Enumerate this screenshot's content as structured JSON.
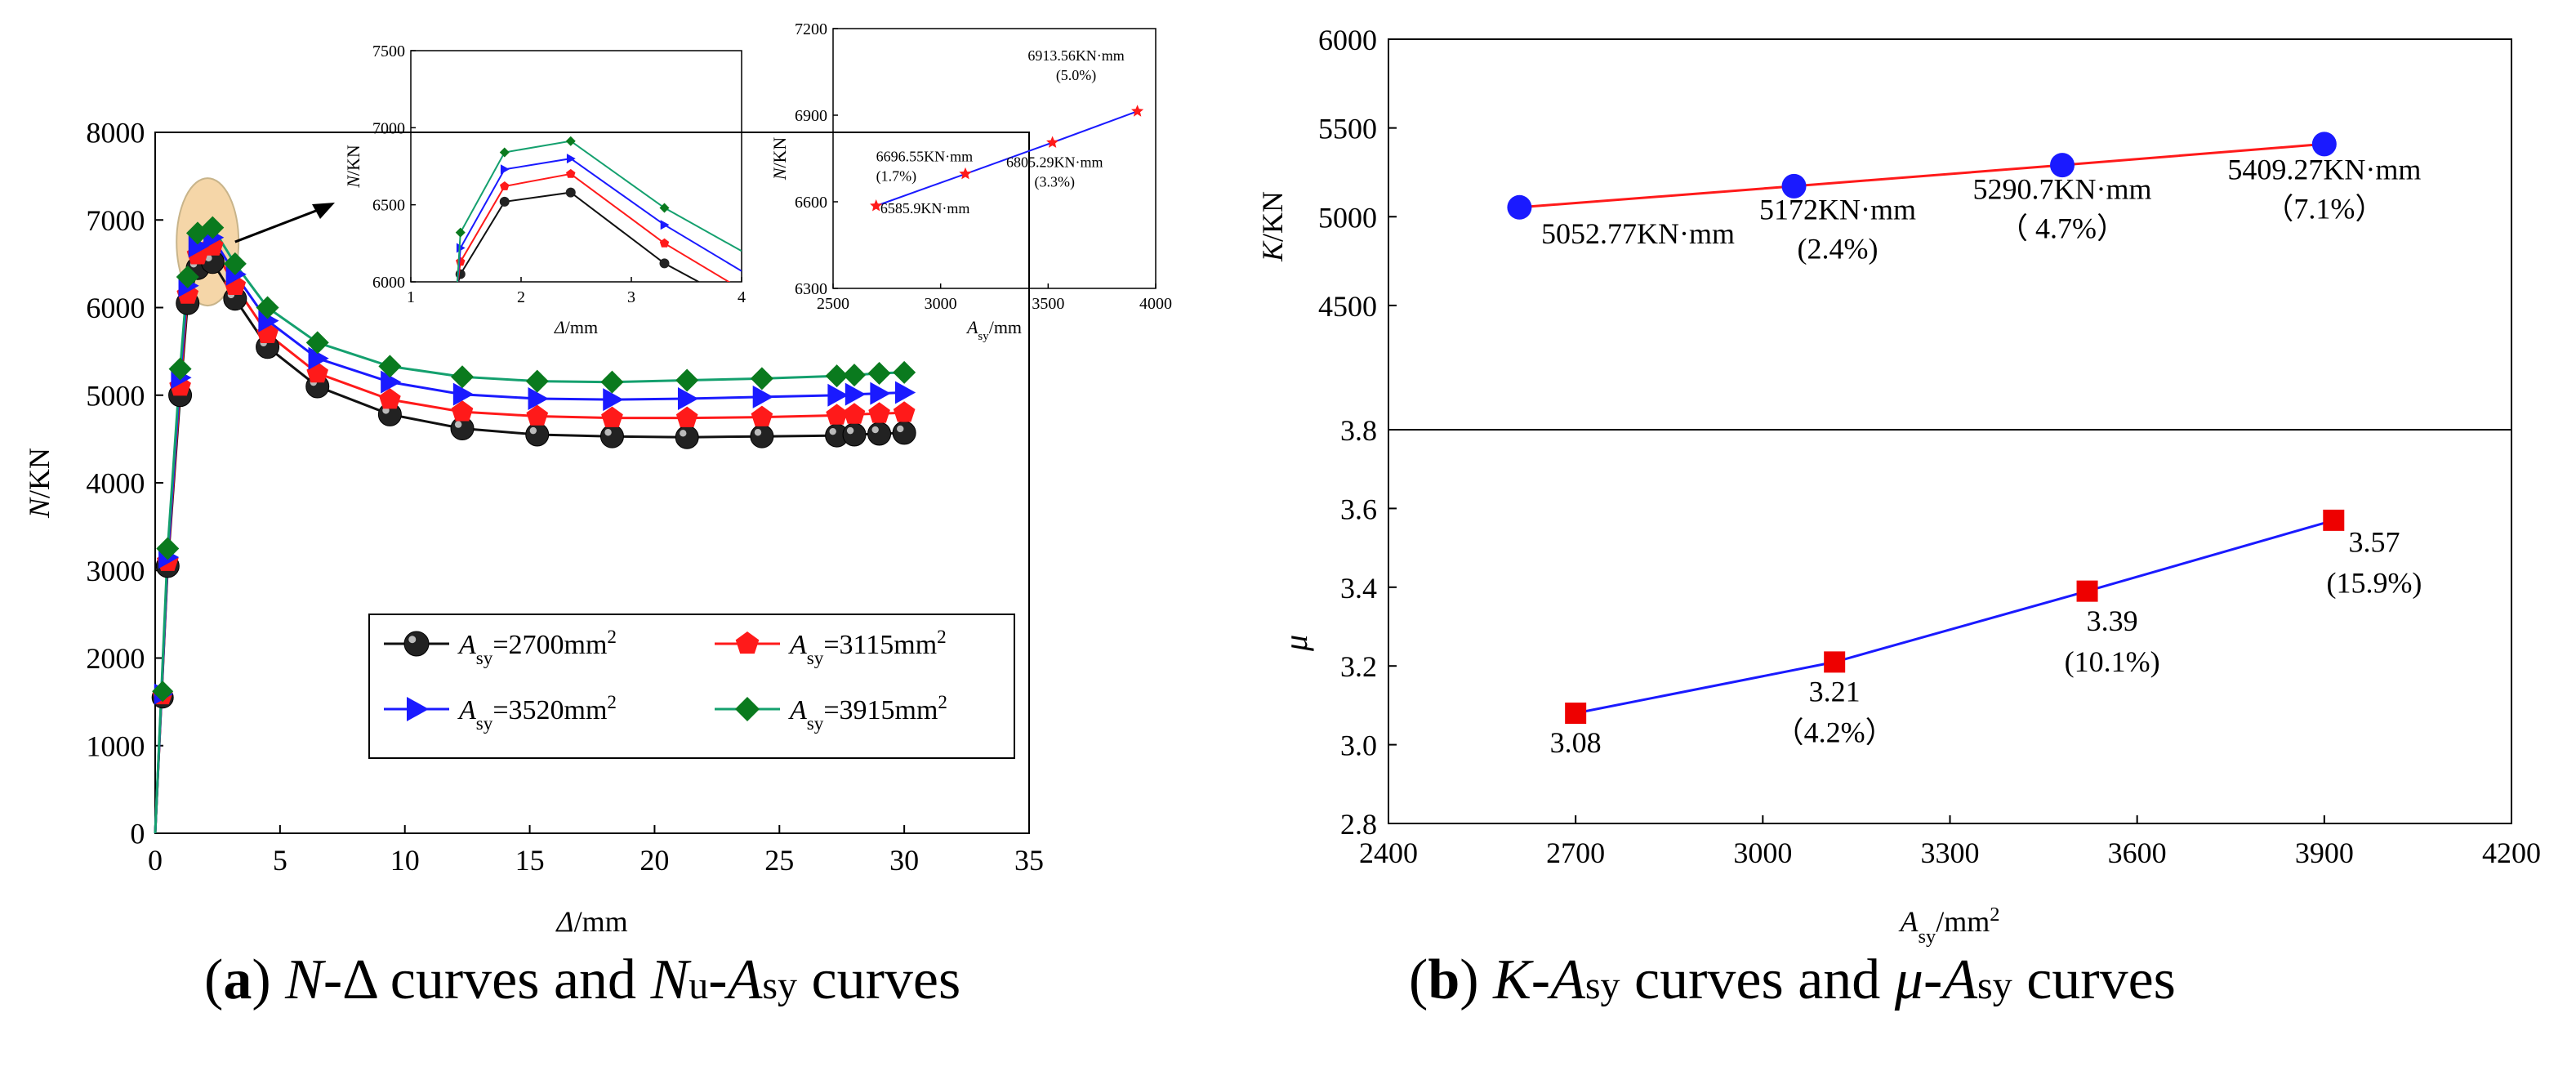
{
  "captions": {
    "a": {
      "letter": "a",
      "text_1": "N",
      "text_2": "-Δ curves and ",
      "text_3": "N",
      "sub_u": "u",
      "text_4": "-",
      "text_5": "A",
      "sub_sy": "sy",
      "text_6": " curves"
    },
    "b": {
      "letter": "b",
      "text_1": "K",
      "text_2": "-",
      "text_3": "A",
      "sub_sy": "sy",
      "text_4": " curves and ",
      "text_5": "μ",
      "text_6": "-",
      "text_7": "A",
      "text_8": " curves"
    }
  },
  "colors": {
    "black": "#111111",
    "red": "#ff1a1a",
    "blue": "#1a1aff",
    "green": "#14a06e",
    "marker_green": "#0a7a1e",
    "blue_point": "#1a1aff",
    "red_square": "#ee0000"
  },
  "legend": {
    "prefix": "A",
    "sub": "sy",
    "items": [
      {
        "eq": "=2700mm",
        "sup": "2",
        "color": "#111111",
        "marker": "ball"
      },
      {
        "eq": "=3115mm",
        "sup": "2",
        "color": "#ff1a1a",
        "marker": "pentagon"
      },
      {
        "eq": "=3520mm",
        "sup": "2",
        "color": "#1a1aff",
        "marker": "triangle"
      },
      {
        "eq": "=3915mm",
        "sup": "2",
        "color": "#14a06e",
        "marker": "diamond"
      }
    ]
  },
  "chart_data": [
    {
      "id": "main-n-delta",
      "type": "line",
      "xlabel_sym": "Δ",
      "xlabel_unit": "/mm",
      "ylabel_sym": "N",
      "ylabel_unit": "/KN",
      "xlim": [
        0,
        35
      ],
      "ylim": [
        0,
        8000
      ],
      "xticks": [
        0,
        5,
        10,
        15,
        20,
        25,
        30,
        35
      ],
      "yticks": [
        0,
        1000,
        2000,
        3000,
        4000,
        5000,
        6000,
        7000,
        8000
      ],
      "series": [
        {
          "name_prefix": "A",
          "name_sub": "sy",
          "name_rest": "=2700mm2",
          "x": [
            0,
            0.5,
            1.0,
            1.3,
            1.7,
            2.3,
            3.2,
            4.5,
            6.5,
            9.4,
            12.3,
            15.3,
            18.3,
            21.3,
            24.3,
            27.3,
            28.0,
            29.0,
            30.0
          ],
          "y": [
            0,
            3050,
            5000,
            6050,
            6450,
            6520,
            6100,
            5550,
            5100,
            4780,
            4620,
            4550,
            4530,
            4520,
            4530,
            4540,
            4550,
            4560,
            4570
          ]
        },
        {
          "name_prefix": "A",
          "name_sub": "sy",
          "name_rest": "=3115mm2",
          "x": [
            0,
            0.5,
            1.0,
            1.3,
            1.7,
            2.3,
            3.2,
            4.5,
            6.5,
            9.4,
            12.3,
            15.3,
            18.3,
            21.3,
            24.3,
            27.3,
            28.0,
            29.0,
            30.0
          ],
          "y": [
            0,
            3100,
            5100,
            6150,
            6600,
            6700,
            6250,
            5700,
            5250,
            4950,
            4810,
            4760,
            4740,
            4740,
            4750,
            4770,
            4780,
            4790,
            4800
          ]
        },
        {
          "name_prefix": "A",
          "name_sub": "sy",
          "name_rest": "=3520mm2",
          "x": [
            0,
            0.5,
            1.0,
            1.3,
            1.7,
            2.3,
            3.2,
            4.5,
            6.5,
            9.4,
            12.3,
            15.3,
            18.3,
            21.3,
            24.3,
            27.3,
            28.0,
            29.0,
            30.0
          ],
          "y": [
            0,
            3150,
            5200,
            6250,
            6700,
            6800,
            6380,
            5850,
            5420,
            5150,
            5010,
            4960,
            4950,
            4960,
            4980,
            5000,
            5010,
            5020,
            5030
          ]
        },
        {
          "name_prefix": "A",
          "name_sub": "sy",
          "name_rest": "=3915mm2",
          "x": [
            0,
            0.5,
            1.0,
            1.3,
            1.7,
            2.3,
            3.2,
            4.5,
            6.5,
            9.4,
            12.3,
            15.3,
            18.3,
            21.3,
            24.3,
            27.3,
            28.0,
            29.0,
            30.0
          ],
          "y": [
            0,
            3250,
            5300,
            6350,
            6850,
            6913,
            6500,
            6000,
            5600,
            5330,
            5210,
            5160,
            5150,
            5170,
            5190,
            5220,
            5230,
            5250,
            5260
          ]
        }
      ],
      "extra_points": [
        {
          "series": 0,
          "x": 0.3,
          "y": 1550
        },
        {
          "series": 1,
          "x": 0.3,
          "y": 1570
        },
        {
          "series": 2,
          "x": 0.3,
          "y": 1590
        },
        {
          "series": 3,
          "x": 0.3,
          "y": 1620
        }
      ],
      "legend_position": "lower-right"
    },
    {
      "id": "inset-zoom",
      "type": "line",
      "xlabel_sym": "Δ",
      "xlabel_unit": "/mm",
      "ylabel_sym": "N",
      "ylabel_unit": "/KN",
      "xlim": [
        1,
        4
      ],
      "ylim": [
        6000,
        7500
      ],
      "xticks": [
        1,
        2,
        3,
        4
      ],
      "yticks": [
        6000,
        6500,
        7000,
        7500
      ],
      "series": [
        {
          "x": [
            1.45,
            1.85,
            2.45,
            3.3,
            4.0
          ],
          "y": [
            6050,
            6520,
            6580,
            6120,
            5850
          ]
        },
        {
          "x": [
            1.45,
            1.85,
            2.45,
            3.3,
            4.0
          ],
          "y": [
            6130,
            6620,
            6700,
            6250,
            5950
          ]
        },
        {
          "x": [
            1.45,
            1.85,
            2.45,
            3.3,
            4.0
          ],
          "y": [
            6220,
            6730,
            6800,
            6370,
            6070
          ]
        },
        {
          "x": [
            1.45,
            1.85,
            2.45,
            3.3,
            4.0
          ],
          "y": [
            6320,
            6840,
            6913,
            6480,
            6200
          ]
        }
      ]
    },
    {
      "id": "inset-nu-asy",
      "type": "line",
      "xlabel_sym": "A",
      "xlabel_sub": "sy",
      "xlabel_unit": "/mm",
      "ylabel_sym": "N",
      "ylabel_unit": "/KN",
      "xlim": [
        2500,
        4000
      ],
      "ylim": [
        6300,
        7200
      ],
      "xticks": [
        2500,
        3000,
        3500,
        4000
      ],
      "yticks": [
        6300,
        6600,
        6900,
        7200
      ],
      "series": [
        {
          "x": [
            2700,
            3115,
            3520,
            3915
          ],
          "y": [
            6585.9,
            6696.55,
            6805.29,
            6913.56
          ]
        }
      ],
      "annotations": [
        {
          "lines": [
            "6585.9KN·mm"
          ],
          "x": 2720,
          "y": 6560,
          "anchor": "start"
        },
        {
          "lines": [
            "6696.55KN·mm",
            "(1.7%)"
          ],
          "x": 2700,
          "y": 6740,
          "anchor": "start"
        },
        {
          "lines": [
            "6805.29KN·mm",
            "(3.3%)"
          ],
          "x": 3530,
          "y": 6720,
          "anchor": "middle"
        },
        {
          "lines": [
            "6913.56KN·mm",
            "(5.0%)"
          ],
          "x": 3630,
          "y": 7090,
          "anchor": "middle"
        }
      ]
    },
    {
      "id": "k-asy",
      "type": "line",
      "ylabel_sym": "K",
      "ylabel_unit": "/KN",
      "xlim": [
        2400,
        4200
      ],
      "ylim": [
        3800,
        6000
      ],
      "yticks": [
        3800,
        4500,
        5000,
        5500,
        6000
      ],
      "series": [
        {
          "x": [
            2610,
            3050,
            3480,
            3900
          ],
          "y": [
            5052.77,
            5172,
            5290.7,
            5409.27
          ]
        }
      ],
      "annotations": [
        {
          "lines": [
            "5052.77KN·mm"
          ],
          "x": 2800,
          "y": 4850,
          "anchor": "middle"
        },
        {
          "lines": [
            "5172KN·mm",
            "(2.4%)"
          ],
          "x": 3120,
          "y": 4985,
          "anchor": "middle"
        },
        {
          "lines": [
            "5290.7KN·mm",
            "（  4.7%）"
          ],
          "x": 3480,
          "y": 5100,
          "anchor": "middle"
        },
        {
          "lines": [
            "5409.27KN·mm",
            "（7.1%）"
          ],
          "x": 3900,
          "y": 5210,
          "anchor": "middle"
        }
      ]
    },
    {
      "id": "mu-asy",
      "type": "line",
      "xlabel_sym": "A",
      "xlabel_sub": "sy",
      "xlabel_unit": "/mm",
      "xlabel_sup": "2",
      "ylabel_sym": "μ",
      "xlim": [
        2400,
        4200
      ],
      "ylim": [
        2.8,
        3.8
      ],
      "xticks": [
        2400,
        2700,
        3000,
        3300,
        3600,
        3900,
        4200
      ],
      "yticks": [
        2.8,
        3.0,
        3.2,
        3.4,
        3.6,
        3.8
      ],
      "series": [
        {
          "x": [
            2700,
            3115,
            3520,
            3915
          ],
          "y": [
            3.08,
            3.21,
            3.39,
            3.57
          ]
        }
      ],
      "annotations": [
        {
          "lines": [
            "3.08"
          ],
          "x": 2700,
          "y": 2.98,
          "anchor": "middle"
        },
        {
          "lines": [
            "3.21",
            "（4.2%）"
          ],
          "x": 3115,
          "y": 3.11,
          "anchor": "middle"
        },
        {
          "lines": [
            "3.39",
            "(10.1%)"
          ],
          "x": 3560,
          "y": 3.29,
          "anchor": "middle"
        },
        {
          "lines": [
            "3.57",
            "(15.9%)"
          ],
          "x": 3980,
          "y": 3.49,
          "anchor": "middle"
        }
      ]
    }
  ]
}
